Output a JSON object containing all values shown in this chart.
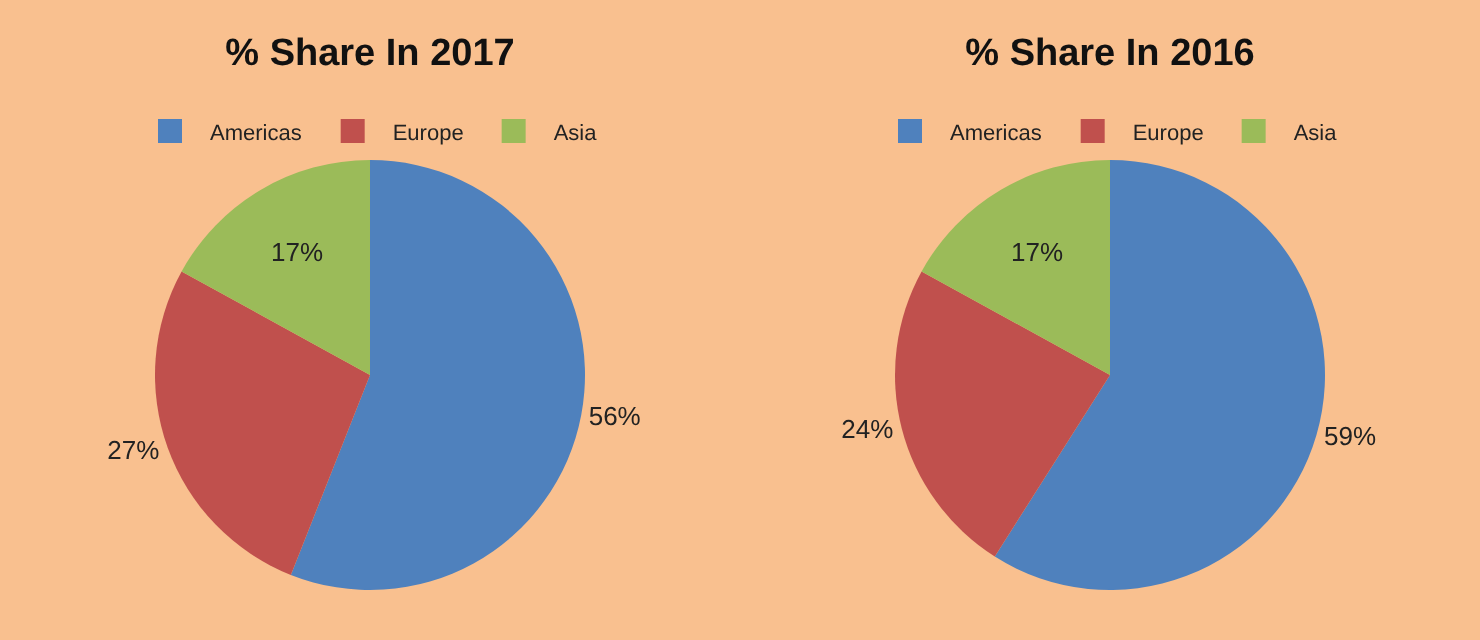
{
  "chart_data": [
    {
      "type": "pie",
      "title": "% Share In 2017",
      "categories": [
        "Americas",
        "Europe",
        "Asia"
      ],
      "values": [
        56,
        27,
        17
      ],
      "colors": [
        "#4f81bd",
        "#c0504d",
        "#9bbb59"
      ],
      "value_labels": [
        "56%",
        "27%",
        "17%"
      ],
      "legend": "top"
    },
    {
      "type": "pie",
      "title": "% Share In 2016",
      "categories": [
        "Americas",
        "Europe",
        "Asia"
      ],
      "values": [
        59,
        24,
        17
      ],
      "colors": [
        "#4f81bd",
        "#c0504d",
        "#9bbb59"
      ],
      "value_labels": [
        "59%",
        "24%",
        "17%"
      ],
      "legend": "top"
    }
  ]
}
